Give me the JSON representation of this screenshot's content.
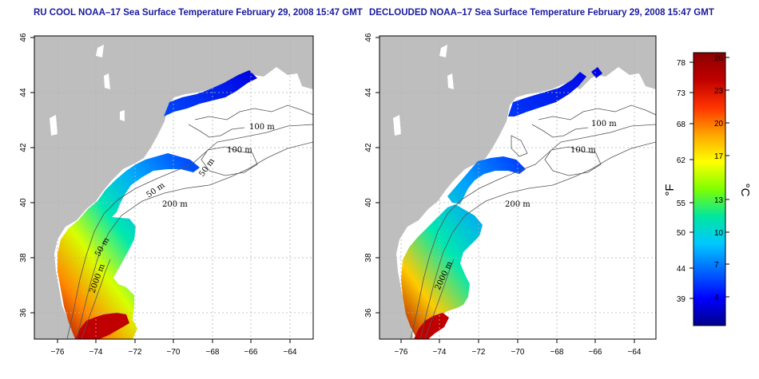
{
  "panels": [
    {
      "title": "RU COOL NOAA–17 Sea Surface Temperature February 29, 2008 15:47 GMT",
      "contour_labels": [
        "100 m",
        "100 m",
        "50 m",
        "200 m",
        "50 m",
        "2000 m",
        "50 m"
      ]
    },
    {
      "title": "DECLOUDED NOAA–17 Sea Surface Temperature February 29, 2008 15:47 GMT",
      "contour_labels": [
        "100 m",
        "100 m",
        "200 m",
        "2000 m"
      ]
    }
  ],
  "axes": {
    "x_ticks": [
      "−76",
      "−74",
      "−72",
      "−70",
      "−68",
      "−66",
      "−64"
    ],
    "y_ticks": [
      "36",
      "38",
      "40",
      "42",
      "44",
      "46"
    ]
  },
  "colorbar": {
    "fahrenheit_ticks": [
      "78",
      "73",
      "68",
      "62",
      "55",
      "50",
      "44",
      "39"
    ],
    "celsius_ticks": [
      "26",
      "23",
      "20",
      "17",
      "13",
      "10",
      "7",
      "4"
    ],
    "fahrenheit_label": "°F",
    "celsius_label": "°C",
    "colors": [
      "#00008b",
      "#0000ff",
      "#0066ff",
      "#00c8ff",
      "#00e6a0",
      "#7fff00",
      "#ffff00",
      "#ffa500",
      "#ff3300",
      "#c00000",
      "#8b0000"
    ]
  },
  "colors": {
    "land": "#bebebe",
    "title": "#1a1a9c",
    "grid": "#b4b4b4"
  }
}
